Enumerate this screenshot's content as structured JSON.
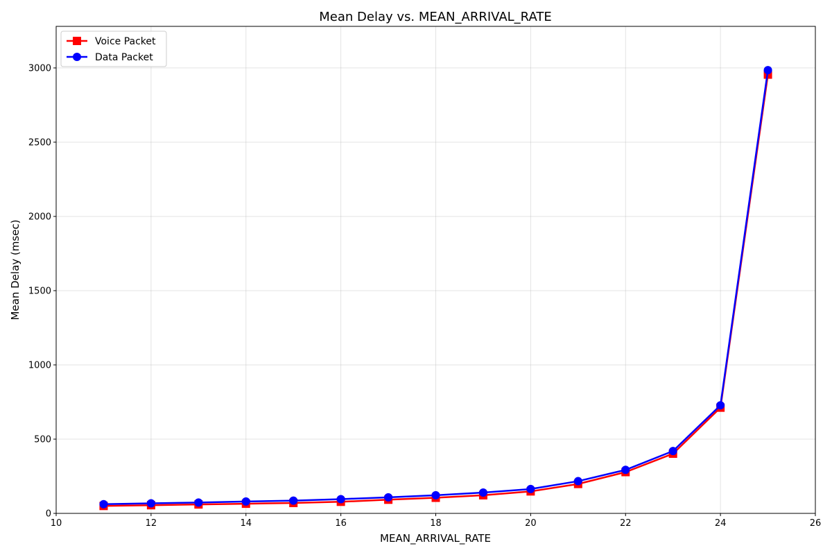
{
  "chart_data": {
    "type": "line",
    "title": "Mean Delay vs. MEAN_ARRIVAL_RATE",
    "xlabel": "MEAN_ARRIVAL_RATE",
    "ylabel": "Mean Delay (msec)",
    "xlim": [
      10,
      26
    ],
    "ylim": [
      0,
      3280
    ],
    "xticks": [
      10,
      12,
      14,
      16,
      18,
      20,
      22,
      24,
      26
    ],
    "yticks": [
      0,
      500,
      1000,
      1500,
      2000,
      2500,
      3000
    ],
    "grid": true,
    "legend_position": "top-left",
    "x": [
      11,
      12,
      13,
      14,
      15,
      16,
      17,
      18,
      19,
      20,
      21,
      22,
      23,
      24,
      25
    ],
    "series": [
      {
        "name": "Voice Packet",
        "color": "#ff0000",
        "marker": "square",
        "values": [
          50,
          55,
          60,
          65,
          70,
          78,
          92,
          105,
          122,
          148,
          198,
          278,
          402,
          712,
          2955
        ]
      },
      {
        "name": "Data Packet",
        "color": "#0000ff",
        "marker": "circle",
        "values": [
          62,
          68,
          73,
          80,
          86,
          96,
          108,
          122,
          140,
          164,
          217,
          293,
          420,
          728,
          2985
        ]
      }
    ]
  }
}
